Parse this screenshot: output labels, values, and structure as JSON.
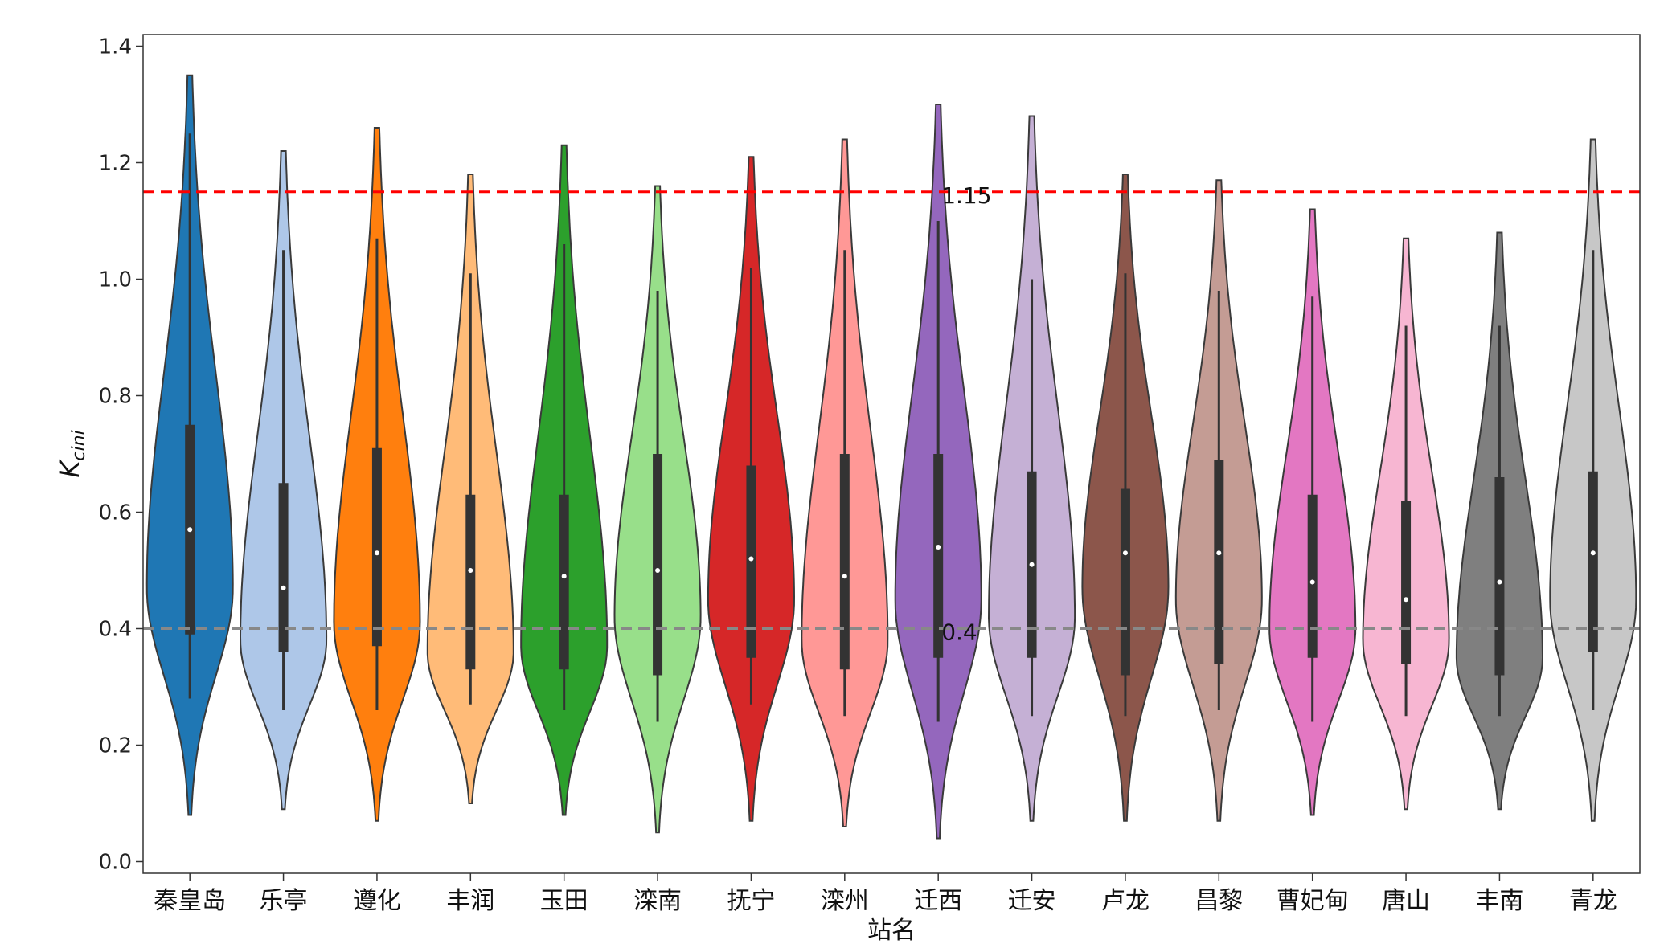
{
  "chart_data": {
    "type": "violin",
    "xlabel": "站名",
    "ylabel": "Kcini",
    "ylim": [
      -0.02,
      1.42
    ],
    "yticks": [
      "0.0",
      "0.2",
      "0.4",
      "0.6",
      "0.8",
      "1.0",
      "1.2",
      "1.4"
    ],
    "grid": false,
    "reference_lines": [
      {
        "value": 1.15,
        "label": "1.15",
        "color": "#ff0000",
        "style": "dashed"
      },
      {
        "value": 0.4,
        "label": "0.4",
        "color": "#888888",
        "style": "dashed"
      }
    ],
    "series": [
      {
        "category": "秦皇岛",
        "color": "#1f77b4",
        "min": 0.08,
        "max": 1.35,
        "q1": 0.39,
        "q3": 0.75,
        "median": 0.57,
        "whisker_low": 0.28,
        "whisker_high": 1.25,
        "mode": 0.47
      },
      {
        "category": "乐亭",
        "color": "#aec7e8",
        "min": 0.09,
        "max": 1.22,
        "q1": 0.36,
        "q3": 0.65,
        "median": 0.47,
        "whisker_low": 0.26,
        "whisker_high": 1.05,
        "mode": 0.38
      },
      {
        "category": "遵化",
        "color": "#ff7f0e",
        "min": 0.07,
        "max": 1.26,
        "q1": 0.37,
        "q3": 0.71,
        "median": 0.53,
        "whisker_low": 0.26,
        "whisker_high": 1.07,
        "mode": 0.41
      },
      {
        "category": "丰润",
        "color": "#ffbb78",
        "min": 0.1,
        "max": 1.18,
        "q1": 0.33,
        "q3": 0.63,
        "median": 0.5,
        "whisker_low": 0.27,
        "whisker_high": 1.01,
        "mode": 0.36
      },
      {
        "category": "玉田",
        "color": "#2ca02c",
        "min": 0.08,
        "max": 1.23,
        "q1": 0.33,
        "q3": 0.63,
        "median": 0.49,
        "whisker_low": 0.26,
        "whisker_high": 1.06,
        "mode": 0.37
      },
      {
        "category": "滦南",
        "color": "#98df8a",
        "min": 0.05,
        "max": 1.16,
        "q1": 0.32,
        "q3": 0.7,
        "median": 0.5,
        "whisker_low": 0.24,
        "whisker_high": 0.98,
        "mode": 0.42
      },
      {
        "category": "抚宁",
        "color": "#d62728",
        "min": 0.07,
        "max": 1.21,
        "q1": 0.35,
        "q3": 0.68,
        "median": 0.52,
        "whisker_low": 0.27,
        "whisker_high": 1.02,
        "mode": 0.45
      },
      {
        "category": "滦州",
        "color": "#ff9896",
        "min": 0.06,
        "max": 1.24,
        "q1": 0.33,
        "q3": 0.7,
        "median": 0.49,
        "whisker_low": 0.25,
        "whisker_high": 1.05,
        "mode": 0.38
      },
      {
        "category": "迁西",
        "color": "#9467bd",
        "min": 0.04,
        "max": 1.3,
        "q1": 0.35,
        "q3": 0.7,
        "median": 0.54,
        "whisker_low": 0.24,
        "whisker_high": 1.1,
        "mode": 0.45
      },
      {
        "category": "迁安",
        "color": "#c5b0d5",
        "min": 0.07,
        "max": 1.28,
        "q1": 0.35,
        "q3": 0.67,
        "median": 0.51,
        "whisker_low": 0.25,
        "whisker_high": 1.0,
        "mode": 0.42
      },
      {
        "category": "卢龙",
        "color": "#8c564b",
        "min": 0.07,
        "max": 1.18,
        "q1": 0.32,
        "q3": 0.64,
        "median": 0.53,
        "whisker_low": 0.25,
        "whisker_high": 1.01,
        "mode": 0.47
      },
      {
        "category": "昌黎",
        "color": "#c49c94",
        "min": 0.07,
        "max": 1.17,
        "q1": 0.34,
        "q3": 0.69,
        "median": 0.53,
        "whisker_low": 0.26,
        "whisker_high": 0.98,
        "mode": 0.45
      },
      {
        "category": "曹妃甸",
        "color": "#e377c2",
        "min": 0.08,
        "max": 1.12,
        "q1": 0.35,
        "q3": 0.63,
        "median": 0.48,
        "whisker_low": 0.24,
        "whisker_high": 0.97,
        "mode": 0.4
      },
      {
        "category": "唐山",
        "color": "#f7b6d2",
        "min": 0.09,
        "max": 1.07,
        "q1": 0.34,
        "q3": 0.62,
        "median": 0.45,
        "whisker_low": 0.25,
        "whisker_high": 0.92,
        "mode": 0.38
      },
      {
        "category": "丰南",
        "color": "#7f7f7f",
        "min": 0.09,
        "max": 1.08,
        "q1": 0.32,
        "q3": 0.66,
        "median": 0.48,
        "whisker_low": 0.25,
        "whisker_high": 0.92,
        "mode": 0.35
      },
      {
        "category": "青龙",
        "color": "#c7c7c7",
        "min": 0.07,
        "max": 1.24,
        "q1": 0.36,
        "q3": 0.67,
        "median": 0.53,
        "whisker_low": 0.26,
        "whisker_high": 1.05,
        "mode": 0.45
      }
    ]
  }
}
